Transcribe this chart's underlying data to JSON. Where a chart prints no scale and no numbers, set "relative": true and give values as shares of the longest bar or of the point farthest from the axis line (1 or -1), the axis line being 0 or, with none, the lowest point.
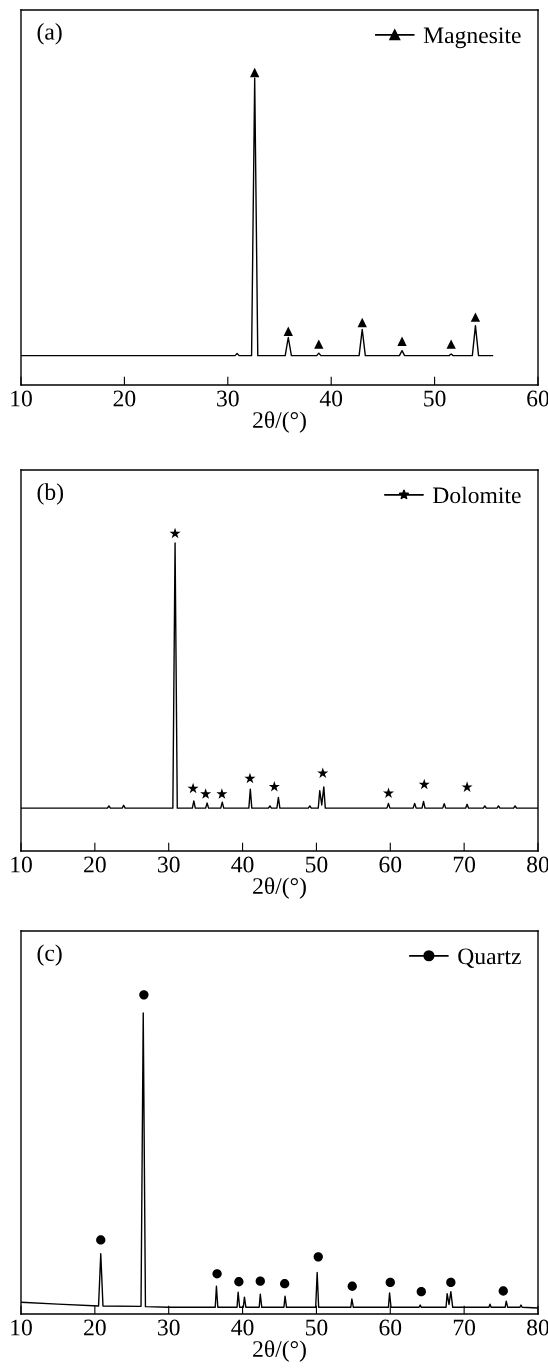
{
  "chart_data": [
    {
      "type": "line",
      "title": "(a)",
      "xlabel": "2θ/(°)",
      "xlim": [
        10,
        60
      ],
      "xticks": [
        10,
        20,
        30,
        40,
        50,
        60
      ],
      "relative": true,
      "tick_labels": "x",
      "legend": "top right",
      "grid": false,
      "series": [
        {
          "color": "#000000",
          "x": [
            10,
            30.7,
            30.9,
            31.1,
            32.3,
            32.6,
            32.9,
            35.55,
            35.85,
            36.15,
            38.6,
            38.8,
            39.0,
            42.7,
            43.0,
            43.3,
            46.6,
            46.85,
            47.1,
            51.4,
            51.6,
            51.8,
            53.65,
            53.95,
            54.25,
            55.6
          ],
          "values": [
            0.094,
            0.094,
            0.101,
            0.094,
            0.094,
            0.982,
            0.094,
            0.094,
            0.152,
            0.094,
            0.094,
            0.102,
            0.094,
            0.094,
            0.178,
            0.094,
            0.094,
            0.11,
            0.094,
            0.094,
            0.099,
            0.094,
            0.094,
            0.19,
            0.094,
            0.094
          ]
        },
        {
          "type": "scatter",
          "name": "Magnesite",
          "marker": "triangle",
          "color": "#000000",
          "x": [
            32.6,
            35.85,
            38.8,
            43.0,
            46.85,
            51.6,
            53.95
          ],
          "values": [
            1.0,
            0.172,
            0.131,
            0.2,
            0.14,
            0.131,
            0.217
          ]
        }
      ]
    },
    {
      "type": "line",
      "title": "(b)",
      "xlabel": "2θ/(°)",
      "xlim": [
        10,
        80
      ],
      "xticks": [
        10,
        20,
        30,
        40,
        50,
        60,
        70,
        80
      ],
      "relative": true,
      "tick_labels": "x",
      "legend": "top right",
      "grid": false,
      "series": [
        {
          "color": "#000000",
          "x": [
            10,
            21.7,
            21.9,
            22.1,
            23.7,
            23.9,
            24.1,
            30.56,
            30.86,
            31.16,
            33.2,
            33.4,
            33.6,
            35.0,
            35.2,
            35.4,
            37.05,
            37.25,
            37.45,
            40.85,
            41.05,
            41.25,
            43.5,
            43.7,
            43.9,
            44.65,
            44.85,
            45.05,
            48.9,
            49.1,
            49.3,
            50.25,
            50.45,
            50.72,
            51.0,
            51.2,
            59.55,
            59.75,
            59.95,
            63.1,
            63.3,
            63.5,
            64.3,
            64.5,
            64.7,
            67.1,
            67.3,
            67.5,
            70.2,
            70.4,
            70.6,
            72.6,
            72.8,
            73.0,
            74.45,
            74.65,
            74.85,
            76.7,
            76.9,
            77.1,
            80
          ],
          "values": [
            0.135,
            0.135,
            0.142,
            0.135,
            0.135,
            0.144,
            0.135,
            0.135,
            0.97,
            0.135,
            0.135,
            0.158,
            0.135,
            0.135,
            0.151,
            0.135,
            0.135,
            0.154,
            0.135,
            0.135,
            0.195,
            0.135,
            0.135,
            0.142,
            0.135,
            0.135,
            0.169,
            0.135,
            0.135,
            0.142,
            0.135,
            0.135,
            0.19,
            0.145,
            0.202,
            0.135,
            0.135,
            0.15,
            0.135,
            0.135,
            0.15,
            0.135,
            0.135,
            0.156,
            0.135,
            0.135,
            0.149,
            0.135,
            0.135,
            0.147,
            0.135,
            0.135,
            0.142,
            0.135,
            0.135,
            0.142,
            0.135,
            0.135,
            0.142,
            0.135,
            0.135
          ]
        },
        {
          "type": "scatter",
          "name": "Dolomite",
          "marker": "star",
          "color": "#000000",
          "x": [
            30.86,
            33.3,
            35.0,
            37.2,
            41.0,
            44.3,
            50.86,
            59.76,
            64.6,
            70.4
          ],
          "values": [
            1.0,
            0.197,
            0.179,
            0.179,
            0.228,
            0.202,
            0.245,
            0.182,
            0.209,
            0.201
          ]
        }
      ]
    },
    {
      "type": "line",
      "title": "(c)",
      "xlabel": "2θ/(°)",
      "xlim": [
        10,
        80
      ],
      "xticks": [
        10,
        20,
        30,
        40,
        50,
        60,
        70,
        80
      ],
      "relative": true,
      "tick_labels": "x",
      "legend": "top right",
      "grid": false,
      "series": [
        {
          "color": "#000000",
          "x": [
            10,
            15,
            20.5,
            20.8,
            21.1,
            26.25,
            26.55,
            26.85,
            30,
            36.3,
            36.46,
            36.65,
            39.25,
            39.4,
            39.6,
            40.1,
            40.25,
            40.45,
            42.25,
            42.4,
            42.6,
            45.6,
            45.75,
            45.95,
            49.9,
            50.1,
            50.3,
            54.65,
            54.8,
            55.0,
            59.75,
            59.9,
            60.1,
            63.9,
            64.05,
            64.2,
            67.55,
            67.7,
            67.95,
            68.2,
            68.45,
            73.35,
            73.5,
            73.65,
            75.55,
            75.7,
            75.9,
            77.55,
            77.7,
            77.85,
            80
          ],
          "values": [
            0.037,
            0.031,
            0.025,
            0.189,
            0.025,
            0.024,
            0.943,
            0.023,
            0.021,
            0.021,
            0.087,
            0.021,
            0.021,
            0.068,
            0.021,
            0.021,
            0.053,
            0.021,
            0.021,
            0.062,
            0.021,
            0.021,
            0.056,
            0.021,
            0.021,
            0.13,
            0.021,
            0.021,
            0.047,
            0.021,
            0.021,
            0.066,
            0.021,
            0.021,
            0.028,
            0.021,
            0.021,
            0.064,
            0.03,
            0.07,
            0.021,
            0.021,
            0.031,
            0.021,
            0.021,
            0.04,
            0.021,
            0.021,
            0.028,
            0.021,
            0.019
          ]
        },
        {
          "type": "scatter",
          "name": "Quartz",
          "marker": "circle",
          "color": "#000000",
          "x": [
            20.8,
            26.64,
            36.55,
            39.5,
            42.4,
            45.7,
            50.25,
            54.85,
            60.0,
            64.2,
            68.2,
            75.3
          ],
          "values": [
            0.232,
            1.0,
            0.126,
            0.101,
            0.103,
            0.095,
            0.179,
            0.087,
            0.099,
            0.07,
            0.099,
            0.072
          ]
        }
      ]
    }
  ]
}
